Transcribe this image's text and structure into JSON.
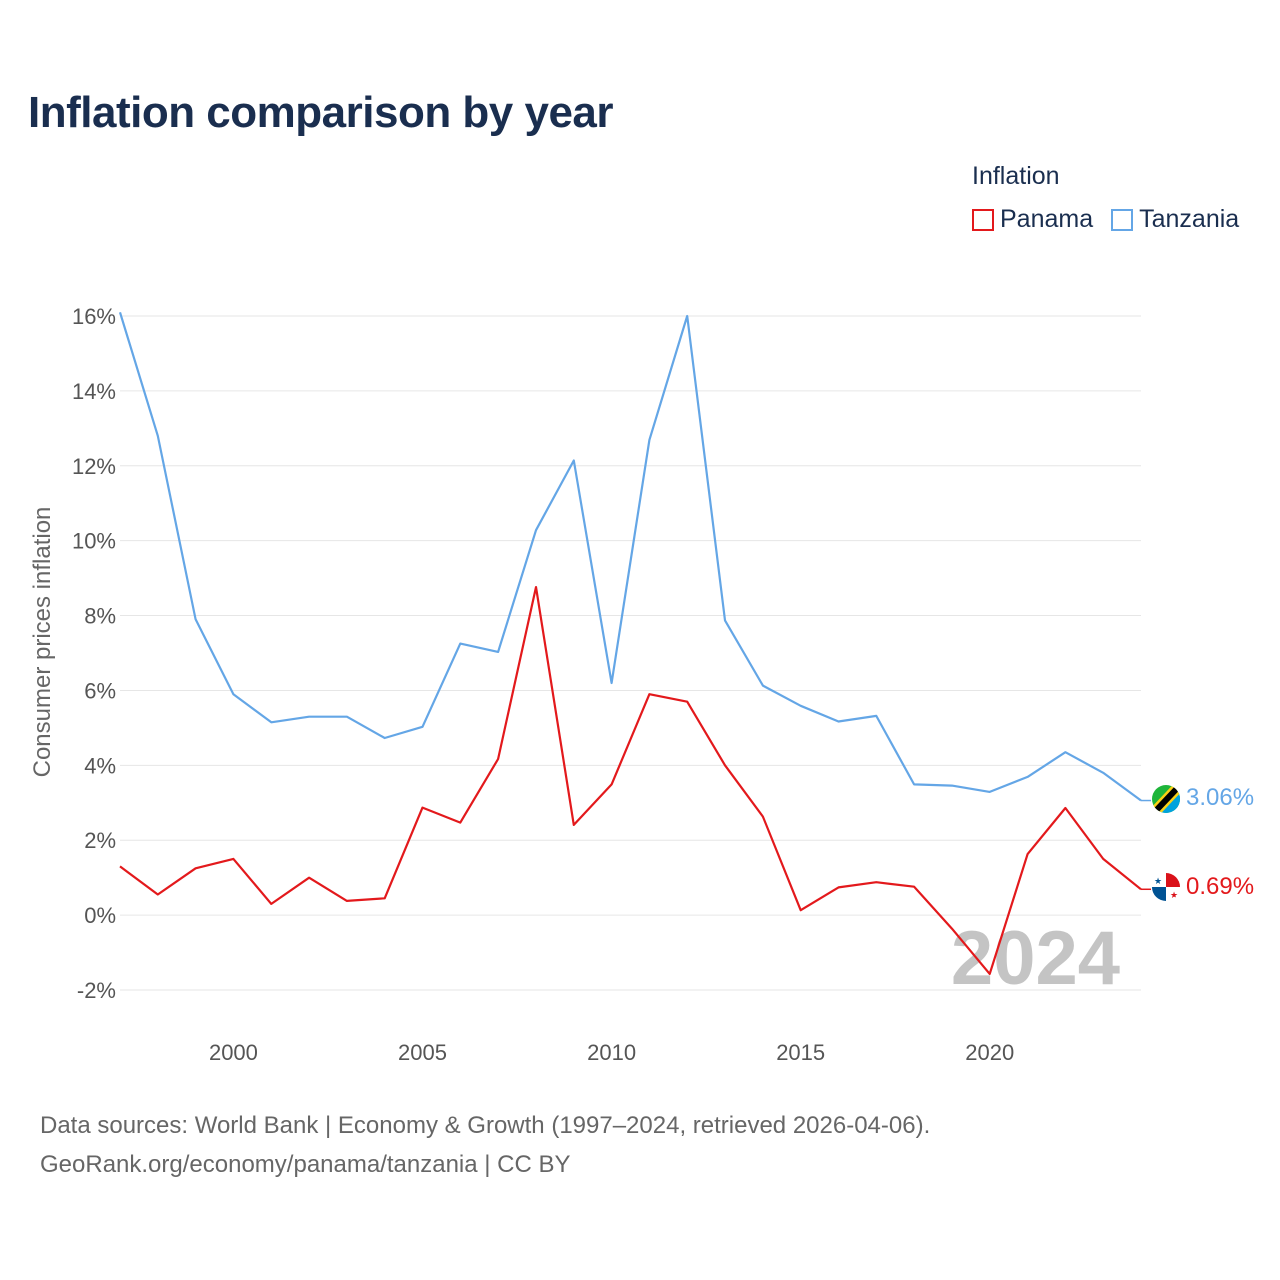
{
  "title": "Inflation comparison by year",
  "legend": {
    "title": "Inflation",
    "items": [
      {
        "label": "Panama",
        "color": "#e3191c"
      },
      {
        "label": "Tanzania",
        "color": "#64a6e6"
      }
    ]
  },
  "source": {
    "line1": "Data sources: World Bank | Economy & Growth (1997–2024, retrieved 2026-04-06).",
    "line2": "GeoRank.org/economy/panama/tanzania | CC BY"
  },
  "chart_data": {
    "type": "line",
    "title": "Inflation comparison by year",
    "xlabel": "",
    "ylabel": "Consumer prices inflation",
    "xlim": [
      1997,
      2024
    ],
    "ylim": [
      -2,
      16
    ],
    "x_ticks": [
      2000,
      2005,
      2010,
      2015,
      2020
    ],
    "y_ticks": [
      -2,
      0,
      2,
      4,
      6,
      8,
      10,
      12,
      14,
      16
    ],
    "y_tick_labels": [
      "-2%",
      "0%",
      "2%",
      "4%",
      "6%",
      "8%",
      "10%",
      "12%",
      "14%",
      "16%"
    ],
    "grid": true,
    "watermark": "2024",
    "x": [
      1997,
      1998,
      1999,
      2000,
      2001,
      2002,
      2003,
      2004,
      2005,
      2006,
      2007,
      2008,
      2009,
      2010,
      2011,
      2012,
      2013,
      2014,
      2015,
      2016,
      2017,
      2018,
      2019,
      2020,
      2021,
      2022,
      2023,
      2024
    ],
    "series": [
      {
        "name": "Tanzania",
        "color": "#64a6e6",
        "end_label": "3.06%",
        "values": [
          16.1,
          12.8,
          7.9,
          5.9,
          5.15,
          5.3,
          5.3,
          4.73,
          5.03,
          7.25,
          7.03,
          10.28,
          12.14,
          6.2,
          12.69,
          16.0,
          7.87,
          6.13,
          5.59,
          5.17,
          5.32,
          3.49,
          3.46,
          3.29,
          3.69,
          4.35,
          3.8,
          3.06
        ]
      },
      {
        "name": "Panama",
        "color": "#e3191c",
        "end_label": "0.69%",
        "values": [
          1.3,
          0.55,
          1.25,
          1.5,
          0.3,
          1.0,
          0.38,
          0.45,
          2.87,
          2.47,
          4.17,
          8.76,
          2.41,
          3.49,
          5.9,
          5.7,
          4.0,
          2.63,
          0.13,
          0.74,
          0.88,
          0.76,
          -0.36,
          -1.57,
          1.63,
          2.86,
          1.5,
          0.69
        ]
      }
    ]
  }
}
